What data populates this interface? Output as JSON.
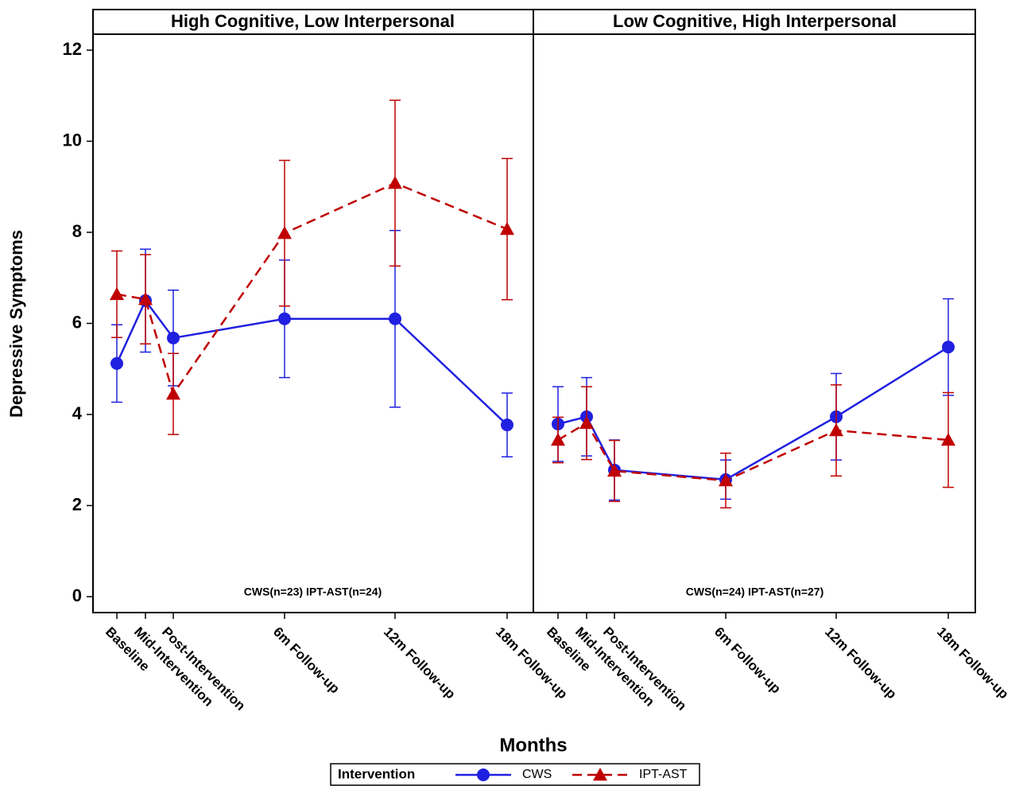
{
  "chart_data": [
    {
      "type": "line",
      "title": "High Cognitive, Low Interpersonal",
      "ylabel": "Depressive Symptoms",
      "xlabel": "Months",
      "legend_title": "Intervention",
      "annotation": "CWS(n=23) IPT-AST(n=24)",
      "categories": [
        "Baseline",
        "Mid-Intervention",
        "Post-Intervention",
        "6m Follow-up",
        "12m Follow-up",
        "18m Follow-up"
      ],
      "ylim": [
        -0.35,
        12.35
      ],
      "yticks": [
        0,
        2,
        4,
        6,
        8,
        10,
        12
      ],
      "series": [
        {
          "name": "CWS",
          "color": "#2020e0",
          "marker": "circle",
          "line_style": "solid",
          "values": [
            5.12,
            6.5,
            5.68,
            6.1,
            6.1,
            3.77
          ],
          "errors": [
            0.85,
            1.13,
            1.05,
            1.29,
            1.94,
            0.7
          ]
        },
        {
          "name": "IPT-AST",
          "color": "#c00000",
          "marker": "triangle",
          "line_style": "dashed",
          "values": [
            6.64,
            6.53,
            4.45,
            7.98,
            9.08,
            8.07
          ],
          "errors": [
            0.95,
            0.98,
            0.89,
            1.6,
            1.82,
            1.55
          ]
        }
      ]
    },
    {
      "type": "line",
      "title": "Low Cognitive, High Interpersonal",
      "annotation": "CWS(n=24) IPT-AST(n=27)",
      "categories": [
        "Baseline",
        "Mid-Intervention",
        "Post-Intervention",
        "6m Follow-up",
        "12m Follow-up",
        "18m Follow-up"
      ],
      "ylim": [
        -0.35,
        12.35
      ],
      "series": [
        {
          "color": "#2020e0",
          "marker": "circle",
          "line_style": "solid",
          "values": [
            3.79,
            3.95,
            2.78,
            2.57,
            3.95,
            5.48
          ],
          "errors": [
            0.82,
            0.86,
            0.66,
            0.43,
            0.95,
            1.06
          ]
        },
        {
          "color": "#c00000",
          "marker": "triangle",
          "line_style": "dashed",
          "values": [
            3.44,
            3.81,
            2.76,
            2.55,
            3.65,
            3.44
          ],
          "errors": [
            0.5,
            0.8,
            0.67,
            0.6,
            1.0,
            1.04
          ]
        }
      ]
    }
  ]
}
